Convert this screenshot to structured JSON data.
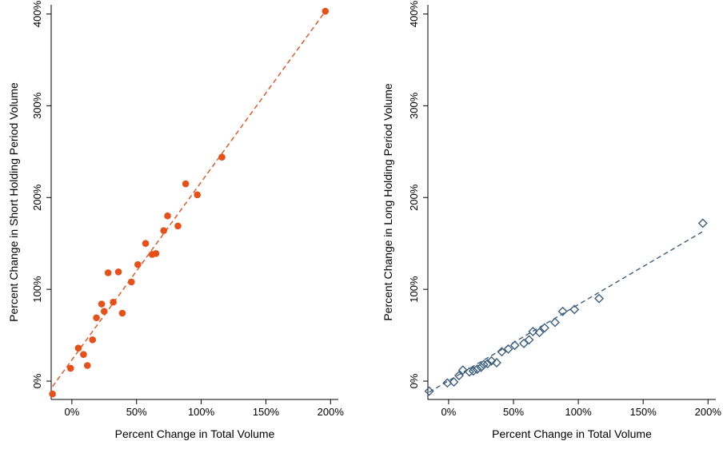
{
  "chart_data": [
    {
      "type": "scatter",
      "xlabel": "Percent Change in Total Volume",
      "ylabel": "Percent Change in Short Holding Period Volume",
      "xlim": [
        -0.16,
        2.06
      ],
      "ylim": [
        -0.2,
        4.1
      ],
      "x_ticks": [
        0,
        0.5,
        1,
        1.5,
        2
      ],
      "x_tick_labels": [
        "0%",
        "50%",
        "100%",
        "150%",
        "200%"
      ],
      "y_ticks": [
        0,
        1,
        2,
        3,
        4
      ],
      "y_tick_labels": [
        "0%",
        "100%",
        "200%",
        "300%",
        "400%"
      ],
      "marker": "filled-circle",
      "color": "#e8501a",
      "fit_line": {
        "style": "dashed",
        "x": [
          -0.15,
          1.96
        ],
        "y": [
          -0.06,
          4.03
        ]
      },
      "points": [
        {
          "x": -0.15,
          "y": -0.14
        },
        {
          "x": -0.01,
          "y": 0.14
        },
        {
          "x": 0.05,
          "y": 0.36
        },
        {
          "x": 0.09,
          "y": 0.29
        },
        {
          "x": 0.12,
          "y": 0.17
        },
        {
          "x": 0.16,
          "y": 0.45
        },
        {
          "x": 0.19,
          "y": 0.69
        },
        {
          "x": 0.23,
          "y": 0.84
        },
        {
          "x": 0.25,
          "y": 0.76
        },
        {
          "x": 0.28,
          "y": 1.18
        },
        {
          "x": 0.32,
          "y": 0.86
        },
        {
          "x": 0.36,
          "y": 1.19
        },
        {
          "x": 0.39,
          "y": 0.74
        },
        {
          "x": 0.46,
          "y": 1.08
        },
        {
          "x": 0.51,
          "y": 1.27
        },
        {
          "x": 0.57,
          "y": 1.5
        },
        {
          "x": 0.62,
          "y": 1.38
        },
        {
          "x": 0.65,
          "y": 1.39
        },
        {
          "x": 0.71,
          "y": 1.64
        },
        {
          "x": 0.74,
          "y": 1.8
        },
        {
          "x": 0.82,
          "y": 1.69
        },
        {
          "x": 0.88,
          "y": 2.15
        },
        {
          "x": 0.97,
          "y": 2.03
        },
        {
          "x": 1.16,
          "y": 2.44
        },
        {
          "x": 1.96,
          "y": 4.03
        }
      ]
    },
    {
      "type": "scatter",
      "xlabel": "Percent Change in Total Volume",
      "ylabel": "Percent Change in Long Holding Period Volume",
      "xlim": [
        -0.16,
        2.06
      ],
      "ylim": [
        -0.2,
        4.1
      ],
      "x_ticks": [
        0,
        0.5,
        1,
        1.5,
        2
      ],
      "x_tick_labels": [
        "0%",
        "50%",
        "100%",
        "150%",
        "200%"
      ],
      "y_ticks": [
        0,
        1,
        2,
        3,
        4
      ],
      "y_tick_labels": [
        "0%",
        "100%",
        "200%",
        "300%",
        "400%"
      ],
      "marker": "hollow-diamond",
      "color": "#3d5f7f",
      "fit_line": {
        "style": "dashed",
        "x": [
          -0.15,
          1.96
        ],
        "y": [
          -0.12,
          1.63
        ]
      },
      "points": [
        {
          "x": -0.15,
          "y": -0.11
        },
        {
          "x": -0.01,
          "y": -0.02
        },
        {
          "x": 0.04,
          "y": -0.01
        },
        {
          "x": 0.08,
          "y": 0.06
        },
        {
          "x": 0.11,
          "y": 0.12
        },
        {
          "x": 0.16,
          "y": 0.1
        },
        {
          "x": 0.19,
          "y": 0.11
        },
        {
          "x": 0.22,
          "y": 0.13
        },
        {
          "x": 0.25,
          "y": 0.15
        },
        {
          "x": 0.27,
          "y": 0.18
        },
        {
          "x": 0.3,
          "y": 0.19
        },
        {
          "x": 0.33,
          "y": 0.22
        },
        {
          "x": 0.37,
          "y": 0.2
        },
        {
          "x": 0.41,
          "y": 0.32
        },
        {
          "x": 0.46,
          "y": 0.35
        },
        {
          "x": 0.51,
          "y": 0.39
        },
        {
          "x": 0.58,
          "y": 0.41
        },
        {
          "x": 0.62,
          "y": 0.45
        },
        {
          "x": 0.65,
          "y": 0.54
        },
        {
          "x": 0.7,
          "y": 0.53
        },
        {
          "x": 0.74,
          "y": 0.58
        },
        {
          "x": 0.82,
          "y": 0.64
        },
        {
          "x": 0.88,
          "y": 0.76
        },
        {
          "x": 0.97,
          "y": 0.78
        },
        {
          "x": 1.16,
          "y": 0.9
        },
        {
          "x": 1.96,
          "y": 1.72
        }
      ]
    }
  ]
}
